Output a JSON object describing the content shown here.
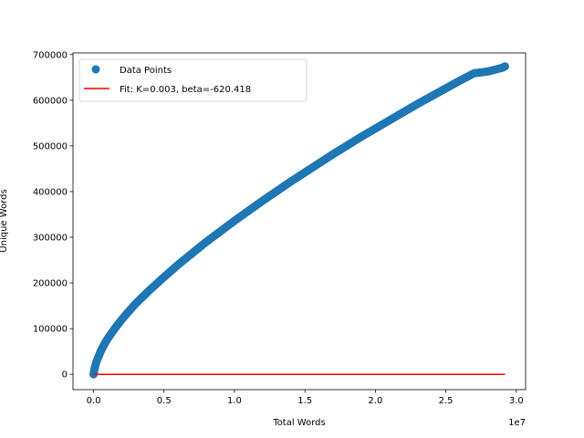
{
  "chart_data": {
    "type": "scatter",
    "xlabel": "Total Words",
    "ylabel": "Unique Words",
    "x_offset_text": "1e7",
    "x_scale": 10000000,
    "xlim": [
      -1460000,
      30660000
    ],
    "ylim": [
      -33500,
      703500
    ],
    "x_ticks": [
      0,
      5000000,
      10000000,
      15000000,
      20000000,
      25000000,
      30000000
    ],
    "x_tick_labels": [
      "0.0",
      "0.5",
      "1.0",
      "1.5",
      "2.0",
      "2.5",
      "3.0"
    ],
    "y_ticks": [
      0,
      100000,
      200000,
      300000,
      400000,
      500000,
      600000,
      700000
    ],
    "y_tick_labels": [
      "0",
      "100000",
      "200000",
      "300000",
      "400000",
      "500000",
      "600000",
      "700000"
    ],
    "grid": false,
    "legend_position": "top-left",
    "series": [
      {
        "name": "Data Points",
        "kind": "scatter",
        "color": "#1f77b4",
        "x": [
          0,
          50000,
          100000,
          200000,
          300000,
          500000,
          750000,
          1000000,
          1500000,
          2000000,
          2500000,
          3000000,
          4000000,
          5000000,
          6000000,
          7000000,
          8000000,
          9000000,
          10000000,
          11000000,
          12000000,
          13000000,
          14000000,
          15000000,
          16000000,
          17000000,
          18000000,
          19000000,
          20000000,
          21000000,
          22000000,
          23000000,
          24000000,
          25000000,
          26000000,
          27000000,
          28000000,
          29000000,
          29200000
        ],
        "y": [
          0,
          10000,
          16000,
          27000,
          35000,
          50000,
          65000,
          78000,
          100000,
          120000,
          138000,
          155000,
          185000,
          213000,
          240000,
          265000,
          290000,
          313000,
          336000,
          358000,
          380000,
          401000,
          422000,
          442000,
          462000,
          482000,
          501000,
          520000,
          538000,
          556000,
          574000,
          592000,
          609000,
          626000,
          643000,
          659000,
          663000,
          671000,
          674000
        ]
      },
      {
        "name": "Fit: K=0.003, beta=-620.418",
        "kind": "line",
        "color": "#ff0000",
        "x": [
          0,
          29200000
        ],
        "y": [
          0,
          0
        ]
      }
    ]
  }
}
